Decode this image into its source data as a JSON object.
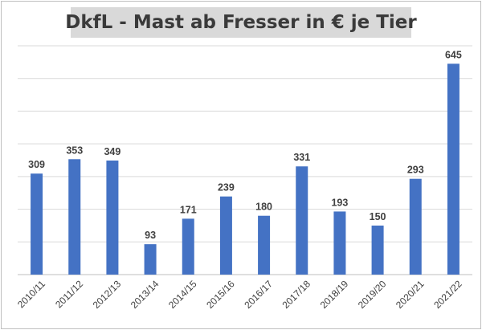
{
  "chart_data": {
    "type": "bar",
    "title": "DkfL - Mast ab Fresser in € je Tier",
    "categories": [
      "2010/11",
      "2011/12",
      "2012/13",
      "2013/14",
      "2014/15",
      "2015/16",
      "2016/17",
      "2017/18",
      "2018/19",
      "2019/20",
      "2020/21",
      "2021/22"
    ],
    "values": [
      309,
      353,
      349,
      93,
      171,
      239,
      180,
      331,
      193,
      150,
      293,
      645
    ],
    "ylim": [
      0,
      700
    ],
    "grid": true,
    "bar_color": "#4472c4"
  }
}
